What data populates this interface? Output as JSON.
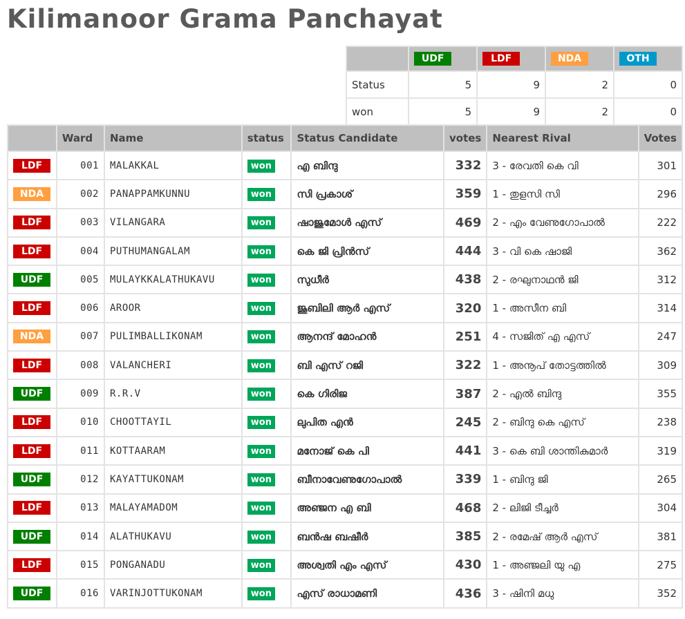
{
  "title": "Kilimanoor Grama Panchayat",
  "colors": {
    "UDF": "#008000",
    "LDF": "#cc0000",
    "NDA": "#ff9f40",
    "OTH": "#0099cc",
    "won": "#00a65a",
    "header_bg": "#c0c0c0"
  },
  "summary": {
    "parties": [
      "UDF",
      "LDF",
      "NDA",
      "OTH"
    ],
    "rows": [
      {
        "label": "Status",
        "values": [
          "5",
          "9",
          "2",
          "0"
        ]
      },
      {
        "label": "won",
        "values": [
          "5",
          "9",
          "2",
          "0"
        ]
      }
    ]
  },
  "table": {
    "headers": [
      "",
      "Ward",
      "Name",
      "status",
      "Status Candidate",
      "votes",
      "Nearest Rival",
      "Votes"
    ],
    "rows": [
      {
        "party": "LDF",
        "ward": "001",
        "name": "MALAKKAL",
        "status": "won",
        "candidate": "എ ബിന്ദു",
        "votes": "332",
        "rival": "3 - രേവതി കെ വി",
        "rival_votes": "301"
      },
      {
        "party": "NDA",
        "ward": "002",
        "name": "PANAPPAMKUNNU",
        "status": "won",
        "candidate": "സി പ്രകാശ്",
        "votes": "359",
        "rival": "1 - തുളസി സി",
        "rival_votes": "296"
      },
      {
        "party": "LDF",
        "ward": "003",
        "name": "VILANGARA",
        "status": "won",
        "candidate": "ഷാജുമോൾ എസ്",
        "votes": "469",
        "rival": "2 - എം വേണുഗോപാൽ",
        "rival_votes": "222"
      },
      {
        "party": "LDF",
        "ward": "004",
        "name": "PUTHUMANGALAM",
        "status": "won",
        "candidate": "കെ ജി പ്രിൻസ്",
        "votes": "444",
        "rival": "3 - വി കെ ഷാജി",
        "rival_votes": "362"
      },
      {
        "party": "UDF",
        "ward": "005",
        "name": "MULAYKKALATHUKAVU",
        "status": "won",
        "candidate": "സുധീർ",
        "votes": "438",
        "rival": "2 - രഘുനാഥൻ ജി",
        "rival_votes": "312"
      },
      {
        "party": "LDF",
        "ward": "006",
        "name": "AROOR",
        "status": "won",
        "candidate": "ജൂബിലി ആർ എസ്",
        "votes": "320",
        "rival": "1 - അസീന ബി",
        "rival_votes": "314"
      },
      {
        "party": "NDA",
        "ward": "007",
        "name": "PULIMBALLIKONAM",
        "status": "won",
        "candidate": "ആനന്ദ് മോഹൻ",
        "votes": "251",
        "rival": "4 - സജിത് എ എസ്",
        "rival_votes": "247"
      },
      {
        "party": "LDF",
        "ward": "008",
        "name": "VALANCHERI",
        "status": "won",
        "candidate": "ബി എസ് റജി",
        "votes": "322",
        "rival": "1 - അനൂപ് തോട്ടത്തിൽ",
        "rival_votes": "309"
      },
      {
        "party": "UDF",
        "ward": "009",
        "name": "R.R.V",
        "status": "won",
        "candidate": "കെ ഗിരിജ",
        "votes": "387",
        "rival": "2 - എൽ ബിന്ദു",
        "rival_votes": "355"
      },
      {
        "party": "LDF",
        "ward": "010",
        "name": "CHOOTTAYIL",
        "status": "won",
        "candidate": "ലുപിത എൻ",
        "votes": "245",
        "rival": "2 - ബിന്ദു കെ എസ്",
        "rival_votes": "238"
      },
      {
        "party": "LDF",
        "ward": "011",
        "name": "KOTTAARAM",
        "status": "won",
        "candidate": "മനോജ് കെ പി",
        "votes": "441",
        "rival": "3 - കെ ബി ശാന്തികുമാർ",
        "rival_votes": "319"
      },
      {
        "party": "UDF",
        "ward": "012",
        "name": "KAYATTUKONAM",
        "status": "won",
        "candidate": "ബീനാവേണുഗോപാൽ",
        "votes": "339",
        "rival": "1 - ബിന്ദു ജി",
        "rival_votes": "265"
      },
      {
        "party": "LDF",
        "ward": "013",
        "name": "MALAYAMADOM",
        "status": "won",
        "candidate": "അഞ്ജന എ ബി",
        "votes": "468",
        "rival": "2 - ലിജി ടീച്ചർ",
        "rival_votes": "304"
      },
      {
        "party": "UDF",
        "ward": "014",
        "name": "ALATHUKAVU",
        "status": "won",
        "candidate": "ബൻഷ ബഷീർ",
        "votes": "385",
        "rival": "2 - രമേഷ് ആർ എസ്",
        "rival_votes": "381"
      },
      {
        "party": "LDF",
        "ward": "015",
        "name": "PONGANADU",
        "status": "won",
        "candidate": "അശ്വതി എം എസ്",
        "votes": "430",
        "rival": "1 - അഞ്ജലി യു എ",
        "rival_votes": "275"
      },
      {
        "party": "UDF",
        "ward": "016",
        "name": "VARINJOTTUKONAM",
        "status": "won",
        "candidate": "എസ് രാധാമണി",
        "votes": "436",
        "rival": "3 - ഷിനി മധു",
        "rival_votes": "352"
      }
    ]
  }
}
